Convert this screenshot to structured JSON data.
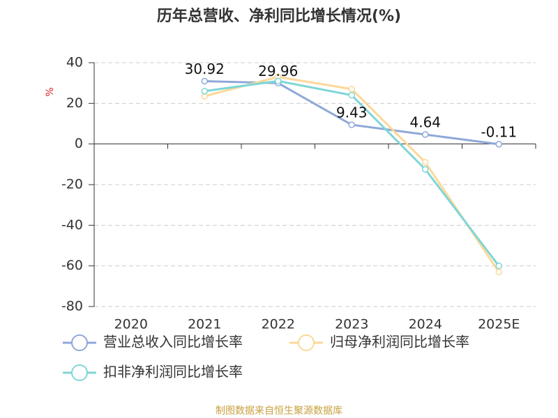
{
  "chart_data": {
    "type": "line",
    "title": "历年总营收、净利同比增长情况(%)",
    "y_label": "%",
    "categories": [
      "2020",
      "2021",
      "2022",
      "2023",
      "2024",
      "2025E"
    ],
    "series": [
      {
        "name": "营业总收入同比增长率",
        "color": "#8fa8d8",
        "values": [
          null,
          30.92,
          29.96,
          9.43,
          4.64,
          -0.11
        ],
        "data_labels": true
      },
      {
        "name": "归母净利润同比增长率",
        "color": "#fcd898",
        "values": [
          null,
          23.5,
          33,
          27,
          -9,
          -63
        ]
      },
      {
        "name": "扣非净利润同比增长率",
        "color": "#7fd6d6",
        "values": [
          null,
          26,
          31,
          24,
          -12.5,
          -60
        ]
      }
    ],
    "ylim": [
      -80,
      40
    ],
    "yticks": [
      -80,
      -60,
      -40,
      -20,
      0,
      20,
      40
    ],
    "grid": true,
    "source": "制图数据来自恒生聚源数据库"
  }
}
